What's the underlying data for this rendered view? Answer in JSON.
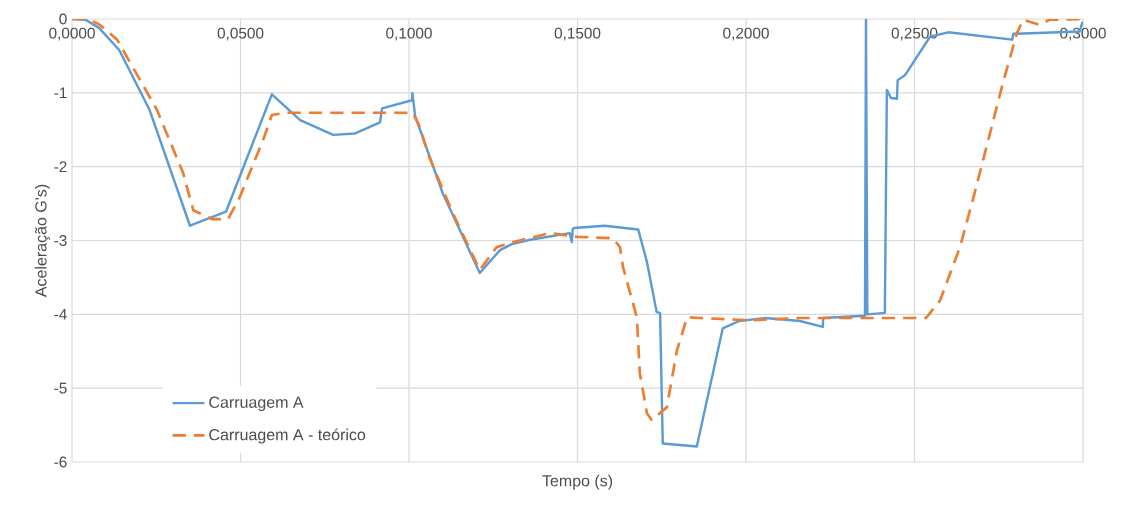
{
  "chart_data": {
    "type": "line",
    "xlabel": "Tempo (s)",
    "ylabel": "Aceleração G's)",
    "xlim": [
      0,
      0.3
    ],
    "ylim": [
      -6,
      0
    ],
    "xticks": [
      {
        "value": 0,
        "label": "0,0000"
      },
      {
        "value": 0.05,
        "label": "0,0500"
      },
      {
        "value": 0.1,
        "label": "0,1000"
      },
      {
        "value": 0.15,
        "label": "0,1500"
      },
      {
        "value": 0.2,
        "label": "0,2000"
      },
      {
        "value": 0.25,
        "label": "0,2500"
      },
      {
        "value": 0.3,
        "label": "0,3000"
      }
    ],
    "yticks": [
      0,
      -1,
      -2,
      -3,
      -4,
      -5,
      -6
    ],
    "grid": true,
    "legend": "bottom left",
    "series": [
      {
        "name": "Carruagem A",
        "color": "#5b9bd5",
        "line_style": "solid",
        "x": [
          0,
          0.004,
          0.008,
          0.014,
          0.023,
          0.035,
          0.0457,
          0.0593,
          0.0677,
          0.0775,
          0.084,
          0.0914,
          0.092,
          0.1009,
          0.101,
          0.1018,
          0.11,
          0.121,
          0.127,
          0.1305,
          0.136,
          0.1477,
          0.1483,
          0.1486,
          0.149,
          0.158,
          0.168,
          0.1706,
          0.1735,
          0.1745,
          0.1753,
          0.1854,
          0.1931,
          0.198,
          0.2056,
          0.216,
          0.2228,
          0.2229,
          0.2353,
          0.2356,
          0.236,
          0.2412,
          0.2418,
          0.243,
          0.2448,
          0.245,
          0.2472,
          0.2546,
          0.26,
          0.279,
          0.2793,
          0.299,
          0.2997,
          0.3
        ],
        "values": [
          0,
          -0.01,
          -0.12,
          -0.42,
          -1.23,
          -2.8,
          -2.61,
          -1.02,
          -1.37,
          -1.57,
          -1.55,
          -1.4,
          -1.21,
          -1.1,
          -1.0,
          -1.31,
          -2.36,
          -3.44,
          -3.13,
          -3.05,
          -2.99,
          -2.9,
          -3.02,
          -2.84,
          -2.83,
          -2.8,
          -2.85,
          -3.29,
          -3.97,
          -3.98,
          -5.75,
          -5.79,
          -4.19,
          -4.09,
          -4.05,
          -4.09,
          -4.17,
          -4.05,
          -4.02,
          0,
          -4.0,
          -3.98,
          -0.96,
          -1.07,
          -1.08,
          -0.83,
          -0.76,
          -0.24,
          -0.18,
          -0.28,
          -0.2,
          -0.17,
          -0.06,
          -0.04
        ]
      },
      {
        "name": "Carruagem A - teórico",
        "color": "#ed7d31",
        "line_style": "dashed",
        "x": [
          0,
          0.005,
          0.0083,
          0.0134,
          0.0252,
          0.033,
          0.036,
          0.0415,
          0.0463,
          0.0498,
          0.0567,
          0.0593,
          0.0632,
          0.1011,
          0.103,
          0.106,
          0.113,
          0.121,
          0.126,
          0.131,
          0.1418,
          0.1498,
          0.1605,
          0.1626,
          0.1635,
          0.1676,
          0.1685,
          0.1706,
          0.172,
          0.1765,
          0.1795,
          0.1825,
          0.1863,
          0.201,
          0.216,
          0.231,
          0.2534,
          0.2576,
          0.2635,
          0.2673,
          0.2724,
          0.2762,
          0.2804,
          0.2822,
          0.2872,
          0.29,
          0.3
        ],
        "values": [
          0,
          0,
          -0.08,
          -0.28,
          -1.23,
          -2.09,
          -2.59,
          -2.71,
          -2.71,
          -2.41,
          -1.64,
          -1.3,
          -1.27,
          -1.27,
          -1.44,
          -1.87,
          -2.63,
          -3.4,
          -3.09,
          -3.02,
          -2.9,
          -2.95,
          -2.97,
          -3.09,
          -3.36,
          -4.04,
          -4.8,
          -5.34,
          -5.43,
          -5.26,
          -4.49,
          -4.04,
          -4.05,
          -4.08,
          -4.05,
          -4.05,
          -4.05,
          -3.81,
          -3.09,
          -2.45,
          -1.55,
          -0.87,
          -0.19,
          -0.01,
          -0.08,
          -0.01,
          0
        ]
      }
    ]
  }
}
